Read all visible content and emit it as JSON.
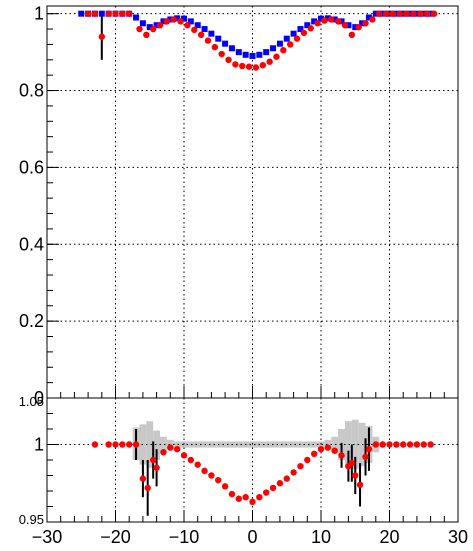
{
  "chart_data": [
    {
      "type": "scatter",
      "title": "",
      "xlabel": "",
      "ylabel": "",
      "xlim": [
        -30,
        30
      ],
      "ylim": [
        0,
        1.02
      ],
      "grid": true,
      "legend": "none",
      "xticks": [
        -30,
        -20,
        -10,
        0,
        10,
        20,
        30
      ],
      "yticks": [
        0,
        0.2,
        0.4,
        0.6,
        0.8,
        1
      ],
      "ytick_labels": [
        "0",
        "0.2",
        "0.4",
        "0.6",
        "0.8",
        "1"
      ],
      "series": [
        {
          "color": "#0000ff",
          "marker": "square",
          "points": [
            [
              -25,
              1.0
            ],
            [
              -24,
              1.0
            ],
            [
              -23,
              1.0
            ],
            [
              -22,
              1.0
            ],
            [
              -21,
              1.0
            ],
            [
              -20,
              1.0
            ],
            [
              -19,
              1.0
            ],
            [
              -18,
              1.0
            ],
            [
              -17,
              0.99
            ],
            [
              -16,
              0.975
            ],
            [
              -15,
              0.965
            ],
            [
              -14,
              0.97
            ],
            [
              -13,
              0.98
            ],
            [
              -12,
              0.985
            ],
            [
              -11,
              0.988
            ],
            [
              -10,
              0.987
            ],
            [
              -9,
              0.98
            ],
            [
              -8,
              0.97
            ],
            [
              -7,
              0.96
            ],
            [
              -6,
              0.948
            ],
            [
              -5,
              0.935
            ],
            [
              -4,
              0.922
            ],
            [
              -3,
              0.91
            ],
            [
              -2,
              0.9
            ],
            [
              -1,
              0.893
            ],
            [
              0,
              0.89
            ],
            [
              1,
              0.893
            ],
            [
              2,
              0.9
            ],
            [
              3,
              0.91
            ],
            [
              4,
              0.922
            ],
            [
              5,
              0.935
            ],
            [
              6,
              0.948
            ],
            [
              7,
              0.96
            ],
            [
              8,
              0.97
            ],
            [
              9,
              0.98
            ],
            [
              10,
              0.987
            ],
            [
              11,
              0.988
            ],
            [
              12,
              0.985
            ],
            [
              13,
              0.98
            ],
            [
              14,
              0.97
            ],
            [
              15,
              0.965
            ],
            [
              16,
              0.975
            ],
            [
              17,
              0.99
            ],
            [
              18,
              1.0
            ],
            [
              19,
              1.0
            ],
            [
              20,
              1.0
            ],
            [
              21,
              1.0
            ],
            [
              22,
              1.0
            ],
            [
              23,
              1.0
            ],
            [
              24,
              1.0
            ],
            [
              25,
              1.0
            ],
            [
              26,
              1.0
            ]
          ]
        },
        {
          "color": "#ff0000",
          "marker": "circle",
          "points": [
            [
              -24,
              1.0
            ],
            [
              -23,
              1.0
            ],
            [
              -22,
              0.94
            ],
            [
              -21,
              1.0
            ],
            [
              -20,
              1.0
            ],
            [
              -19,
              1.0
            ],
            [
              -18,
              1.0
            ],
            [
              -16.5,
              0.96
            ],
            [
              -15.5,
              0.945
            ],
            [
              -14.5,
              0.96
            ],
            [
              -13.5,
              0.97
            ],
            [
              -12.5,
              0.98
            ],
            [
              -11.5,
              0.985
            ],
            [
              -10.5,
              0.98
            ],
            [
              -9.5,
              0.97
            ],
            [
              -8.5,
              0.958
            ],
            [
              -7.5,
              0.945
            ],
            [
              -6.5,
              0.93
            ],
            [
              -5.5,
              0.913
            ],
            [
              -4.5,
              0.895
            ],
            [
              -3.5,
              0.88
            ],
            [
              -2.5,
              0.868
            ],
            [
              -1.5,
              0.864
            ],
            [
              -0.5,
              0.862
            ],
            [
              0.5,
              0.86
            ],
            [
              1.5,
              0.866
            ],
            [
              2.5,
              0.875
            ],
            [
              3.5,
              0.888
            ],
            [
              4.5,
              0.905
            ],
            [
              5.5,
              0.92
            ],
            [
              6.5,
              0.935
            ],
            [
              7.5,
              0.95
            ],
            [
              8.5,
              0.962
            ],
            [
              9.5,
              0.975
            ],
            [
              10.5,
              0.982
            ],
            [
              11.5,
              0.985
            ],
            [
              12.5,
              0.98
            ],
            [
              13.5,
              0.97
            ],
            [
              14.5,
              0.945
            ],
            [
              15.5,
              0.965
            ],
            [
              16.5,
              0.975
            ],
            [
              17.5,
              0.985
            ],
            [
              18.5,
              1.0
            ],
            [
              19.5,
              1.0
            ],
            [
              20.5,
              1.0
            ],
            [
              21.5,
              1.0
            ],
            [
              22.5,
              1.0
            ],
            [
              23.5,
              1.0
            ],
            [
              24.5,
              1.0
            ],
            [
              25.5,
              1.0
            ],
            [
              26.5,
              1.0
            ]
          ],
          "errors": [
            [
              -22,
              0.06
            ]
          ]
        }
      ]
    },
    {
      "type": "scatter",
      "title": "",
      "xlabel": "",
      "ylabel": "",
      "xlim": [
        -30,
        30
      ],
      "ylim": [
        0.95,
        1.03
      ],
      "grid": true,
      "legend": "none",
      "xticks": [
        -30,
        -20,
        -10,
        0,
        10,
        20,
        30
      ],
      "xtick_labels": [
        "−30",
        "−20",
        "−10",
        "0",
        "10",
        "20",
        "30"
      ],
      "yticks": [
        0.95,
        1
      ],
      "ytick_labels": [
        "0.95",
        "1"
      ],
      "top_label": "1.05",
      "band": {
        "color": "#c8c8c8",
        "bins": [
          [
            -17.5,
            -16.5,
            0.99,
            1.011
          ],
          [
            -16.5,
            -15.5,
            0.987,
            1.013
          ],
          [
            -15.5,
            -14.5,
            0.985,
            1.015
          ],
          [
            -14.5,
            -13.5,
            0.99,
            1.009
          ],
          [
            -13.5,
            -12.5,
            0.995,
            1.005
          ],
          [
            -12.5,
            -11.5,
            0.997,
            1.003
          ],
          [
            -11.5,
            10.5,
            0.998,
            1.002
          ],
          [
            10.5,
            11.5,
            0.997,
            1.003
          ],
          [
            11.5,
            12.5,
            0.995,
            1.005
          ],
          [
            12.5,
            13.5,
            0.99,
            1.01
          ],
          [
            13.5,
            14.5,
            0.985,
            1.015
          ],
          [
            14.5,
            15.5,
            0.984,
            1.016
          ],
          [
            15.5,
            16.5,
            0.986,
            1.014
          ],
          [
            16.5,
            17.5,
            0.988,
            1.012
          ],
          [
            17.5,
            18.5,
            0.995,
            1.005
          ]
        ]
      },
      "series": [
        {
          "color": "#ff0000",
          "marker": "circle",
          "points": [
            [
              -23,
              1.0
            ],
            [
              -21,
              1.0
            ],
            [
              -20,
              1.0
            ],
            [
              -19,
              1.0
            ],
            [
              -18,
              1.0
            ],
            [
              -17,
              1.0
            ],
            [
              -16,
              0.978
            ],
            [
              -15.3,
              0.972
            ],
            [
              -14.5,
              0.99
            ],
            [
              -14,
              0.985
            ],
            [
              -13,
              0.995
            ],
            [
              -12,
              0.998
            ],
            [
              -11,
              0.997
            ],
            [
              -10,
              0.993
            ],
            [
              -9,
              0.99
            ],
            [
              -8,
              0.987
            ],
            [
              -7,
              0.983
            ],
            [
              -6,
              0.98
            ],
            [
              -5,
              0.977
            ],
            [
              -4,
              0.973
            ],
            [
              -3,
              0.968
            ],
            [
              -2,
              0.965
            ],
            [
              -1,
              0.966
            ],
            [
              0,
              0.963
            ],
            [
              1,
              0.966
            ],
            [
              2,
              0.969
            ],
            [
              3,
              0.972
            ],
            [
              4,
              0.975
            ],
            [
              5,
              0.978
            ],
            [
              6,
              0.982
            ],
            [
              7,
              0.986
            ],
            [
              8,
              0.99
            ],
            [
              9,
              0.994
            ],
            [
              10,
              0.997
            ],
            [
              11,
              0.998
            ],
            [
              12,
              0.996
            ],
            [
              13,
              0.993
            ],
            [
              14,
              0.986
            ],
            [
              14.5,
              0.988
            ],
            [
              15,
              0.98
            ],
            [
              15.7,
              0.974
            ],
            [
              16.5,
              0.992
            ],
            [
              17,
              0.997
            ],
            [
              18,
              1.0
            ],
            [
              19,
              1.0
            ],
            [
              20,
              1.0
            ],
            [
              21,
              1.0
            ],
            [
              22,
              1.0
            ],
            [
              23,
              1.0
            ],
            [
              24,
              1.0
            ],
            [
              25,
              1.0
            ],
            [
              26,
              1.0
            ]
          ],
          "errors": [
            [
              -17,
              0.01
            ],
            [
              -16,
              0.012
            ],
            [
              -15.3,
              0.018
            ],
            [
              -14.5,
              0.012
            ],
            [
              -14,
              0.012
            ],
            [
              13,
              0.008
            ],
            [
              14,
              0.01
            ],
            [
              14.5,
              0.012
            ],
            [
              15,
              0.012
            ],
            [
              15.7,
              0.014
            ],
            [
              16.5,
              0.012
            ],
            [
              17,
              0.014
            ]
          ]
        }
      ]
    }
  ]
}
